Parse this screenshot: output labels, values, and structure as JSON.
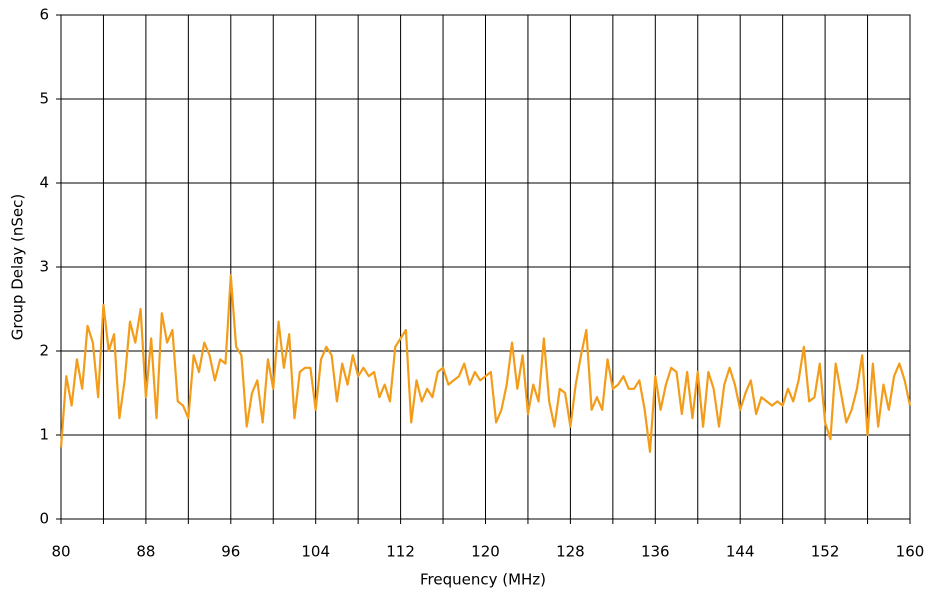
{
  "chart_data": {
    "type": "line",
    "xlabel": "Frequency (MHz)",
    "ylabel": "Group Delay (nSec)",
    "color": "#f39c1a",
    "x": [
      80,
      80.5,
      81,
      81.5,
      82,
      82.5,
      83,
      83.5,
      84,
      84.5,
      85,
      85.5,
      86,
      86.5,
      87,
      87.5,
      88,
      88.5,
      89,
      89.5,
      90,
      90.5,
      91,
      91.5,
      92,
      92.5,
      93,
      93.5,
      94,
      94.5,
      95,
      95.5,
      96,
      96.5,
      97,
      97.5,
      98,
      98.5,
      99,
      99.5,
      100,
      100.5,
      101,
      101.5,
      102,
      102.5,
      103,
      103.5,
      104,
      104.5,
      105,
      105.5,
      106,
      106.5,
      107,
      107.5,
      108,
      108.5,
      109,
      109.5,
      110,
      110.5,
      111,
      111.5,
      112,
      112.5,
      113,
      113.5,
      114,
      114.5,
      115,
      115.5,
      116,
      116.5,
      117,
      117.5,
      118,
      118.5,
      119,
      119.5,
      120,
      120.5,
      121,
      121.5,
      122,
      122.5,
      123,
      123.5,
      124,
      124.5,
      125,
      125.5,
      126,
      126.5,
      127,
      127.5,
      128,
      128.5,
      129,
      129.5,
      130,
      130.5,
      131,
      131.5,
      132,
      132.5,
      133,
      133.5,
      134,
      134.5,
      135,
      135.5,
      136,
      136.5,
      137,
      137.5,
      138,
      138.5,
      139,
      139.5,
      140,
      140.5,
      141,
      141.5,
      142,
      142.5,
      143,
      143.5,
      144,
      144.5,
      145,
      145.5,
      146,
      146.5,
      147,
      147.5,
      148,
      148.5,
      149,
      149.5,
      150,
      150.5,
      151,
      151.5,
      152,
      152.5,
      153,
      153.5,
      154,
      154.5,
      155,
      155.5,
      156,
      156.5,
      157,
      157.5,
      158,
      158.5,
      159,
      159.5,
      160
    ],
    "values": [
      0.85,
      1.7,
      1.35,
      1.9,
      1.55,
      2.3,
      2.1,
      1.45,
      2.55,
      2.0,
      2.2,
      1.2,
      1.65,
      2.35,
      2.1,
      2.5,
      1.45,
      2.15,
      1.2,
      2.45,
      2.1,
      2.25,
      1.4,
      1.35,
      1.2,
      1.95,
      1.75,
      2.1,
      1.95,
      1.65,
      1.9,
      1.85,
      2.9,
      2.05,
      1.95,
      1.1,
      1.5,
      1.65,
      1.15,
      1.9,
      1.55,
      2.35,
      1.8,
      2.2,
      1.2,
      1.75,
      1.8,
      1.8,
      1.3,
      1.9,
      2.05,
      1.95,
      1.4,
      1.85,
      1.6,
      1.95,
      1.7,
      1.8,
      1.7,
      1.75,
      1.45,
      1.6,
      1.4,
      2.05,
      2.15,
      2.25,
      1.15,
      1.65,
      1.4,
      1.55,
      1.45,
      1.75,
      1.8,
      1.6,
      1.65,
      1.7,
      1.85,
      1.6,
      1.75,
      1.65,
      1.7,
      1.75,
      1.15,
      1.3,
      1.6,
      2.1,
      1.55,
      1.95,
      1.25,
      1.6,
      1.4,
      2.15,
      1.4,
      1.1,
      1.55,
      1.5,
      1.1,
      1.6,
      1.95,
      2.25,
      1.3,
      1.45,
      1.3,
      1.9,
      1.55,
      1.6,
      1.7,
      1.55,
      1.55,
      1.65,
      1.3,
      0.8,
      1.7,
      1.3,
      1.6,
      1.8,
      1.75,
      1.25,
      1.75,
      1.2,
      1.75,
      1.1,
      1.75,
      1.55,
      1.1,
      1.6,
      1.8,
      1.6,
      1.3,
      1.5,
      1.65,
      1.25,
      1.45,
      1.4,
      1.35,
      1.4,
      1.35,
      1.55,
      1.4,
      1.65,
      2.05,
      1.4,
      1.45,
      1.85,
      1.15,
      0.95,
      1.85,
      1.5,
      1.15,
      1.3,
      1.55,
      1.95,
      1.0,
      1.85,
      1.1,
      1.6,
      1.3,
      1.7,
      1.85,
      1.65,
      1.35
    ],
    "xlim": [
      80,
      160
    ],
    "xticks": [
      80,
      88,
      96,
      104,
      112,
      120,
      128,
      136,
      144,
      152,
      160
    ],
    "xminor_ticks": [
      84,
      92,
      100,
      108,
      116,
      124,
      132,
      140,
      148,
      156
    ],
    "ylim": [
      0,
      6
    ],
    "yticks": [
      0,
      1,
      2,
      3,
      4,
      5,
      6
    ],
    "grid": true
  }
}
